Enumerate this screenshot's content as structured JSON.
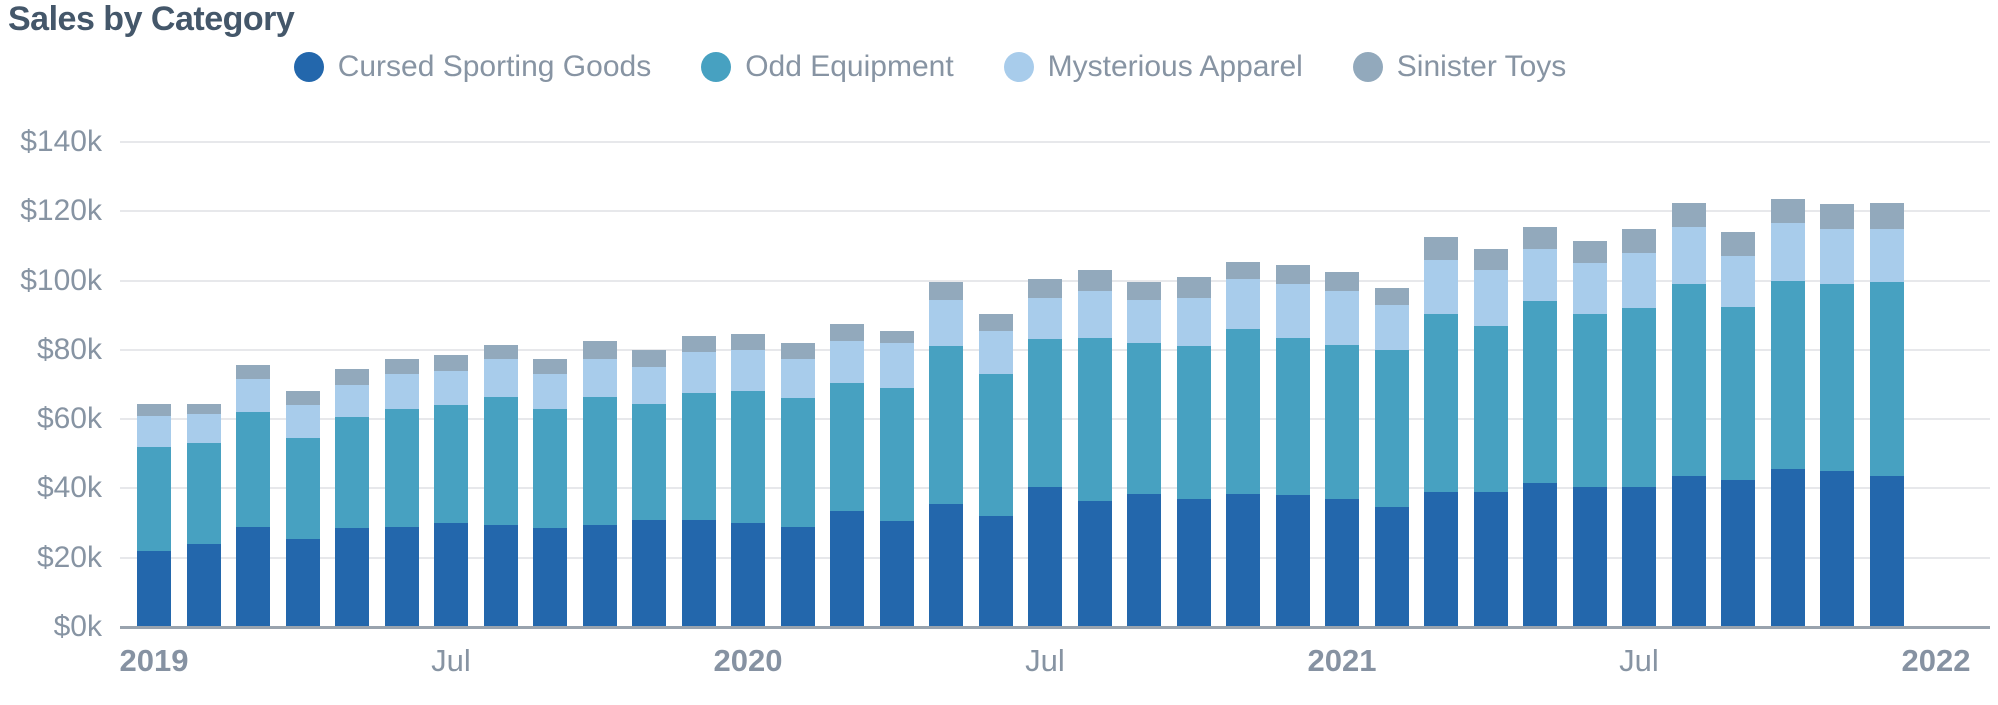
{
  "title": "Sales by Category",
  "legend": {
    "items": [
      {
        "label": "Cursed Sporting Goods",
        "color": "#2367ac"
      },
      {
        "label": "Odd Equipment",
        "color": "#47a1c1"
      },
      {
        "label": "Mysterious Apparel",
        "color": "#a8cceb"
      },
      {
        "label": "Sinister Toys",
        "color": "#92a9bc"
      }
    ]
  },
  "chart_data": {
    "type": "bar",
    "stacked": true,
    "title": "Sales by Category",
    "xlabel": "",
    "ylabel": "",
    "y_unit": "USD thousands",
    "ylim": [
      0,
      140
    ],
    "grid": "horizontal",
    "legend_position": "top",
    "categories": [
      "2019-01",
      "2019-02",
      "2019-03",
      "2019-04",
      "2019-05",
      "2019-06",
      "2019-07",
      "2019-08",
      "2019-09",
      "2019-10",
      "2019-11",
      "2019-12",
      "2020-01",
      "2020-02",
      "2020-03",
      "2020-04",
      "2020-05",
      "2020-06",
      "2020-07",
      "2020-08",
      "2020-09",
      "2020-10",
      "2020-11",
      "2020-12",
      "2021-01",
      "2021-02",
      "2021-03",
      "2021-04",
      "2021-05",
      "2021-06",
      "2021-07",
      "2021-08",
      "2021-09",
      "2021-10",
      "2021-11",
      "2021-12"
    ],
    "series": [
      {
        "name": "Cursed Sporting Goods",
        "color": "#2367ac",
        "values": [
          22,
          24,
          29,
          25.5,
          28.5,
          29,
          30,
          29.5,
          28.5,
          29.5,
          31,
          31,
          30,
          29,
          33.5,
          30.5,
          35.5,
          32,
          40.5,
          36.5,
          38.5,
          37,
          38.5,
          38,
          37,
          34.5,
          39,
          39,
          41.5,
          40.5,
          40.5,
          43.5,
          42.5,
          45.5,
          45,
          43.5
        ]
      },
      {
        "name": "Odd Equipment",
        "color": "#47a1c1",
        "values": [
          30,
          29,
          33,
          29,
          32,
          34,
          34,
          37,
          34.5,
          37,
          33.5,
          36.5,
          38,
          37,
          37,
          38.5,
          45.5,
          41,
          42.5,
          47,
          43.5,
          44,
          47.5,
          45.5,
          44.5,
          45.5,
          51.5,
          48,
          52.5,
          50,
          51.5,
          55.5,
          50,
          54.5,
          54,
          56
        ]
      },
      {
        "name": "Mysterious Apparel",
        "color": "#a8cceb",
        "values": [
          9,
          8.5,
          9.5,
          9.5,
          9.5,
          10,
          10,
          11,
          10,
          11,
          10.5,
          12,
          12,
          11.5,
          12,
          13,
          13.5,
          12.5,
          12,
          13.5,
          12.5,
          14,
          14.5,
          15.5,
          15.5,
          13,
          15.5,
          16,
          15,
          14.5,
          16,
          16.5,
          14.5,
          16.5,
          16,
          15.5
        ]
      },
      {
        "name": "Sinister Toys",
        "color": "#92a9bc",
        "values": [
          3.5,
          3,
          4,
          4,
          4.5,
          4.5,
          4.5,
          4,
          4.5,
          5,
          5,
          4.5,
          4.5,
          4.5,
          5,
          3.5,
          5,
          5,
          5.5,
          6,
          5,
          6,
          5,
          5.5,
          5.5,
          5,
          6.5,
          6,
          6.5,
          6.5,
          7,
          7,
          7,
          7,
          7,
          7.5
        ]
      }
    ],
    "y_ticks": [
      {
        "value": 0,
        "label": "$0k"
      },
      {
        "value": 20,
        "label": "$20k"
      },
      {
        "value": 40,
        "label": "$40k"
      },
      {
        "value": 60,
        "label": "$60k"
      },
      {
        "value": 80,
        "label": "$80k"
      },
      {
        "value": 100,
        "label": "$100k"
      },
      {
        "value": 120,
        "label": "$120k"
      },
      {
        "value": 140,
        "label": "$140k"
      }
    ],
    "x_ticks": [
      {
        "index": 0,
        "label": "2019",
        "bold": true
      },
      {
        "index": 6,
        "label": "Jul",
        "bold": false
      },
      {
        "index": 12,
        "label": "2020",
        "bold": true
      },
      {
        "index": 18,
        "label": "Jul",
        "bold": false
      },
      {
        "index": 24,
        "label": "2021",
        "bold": true
      },
      {
        "index": 30,
        "label": "Jul",
        "bold": false
      },
      {
        "index": 36,
        "label": "2022",
        "bold": true
      }
    ]
  }
}
